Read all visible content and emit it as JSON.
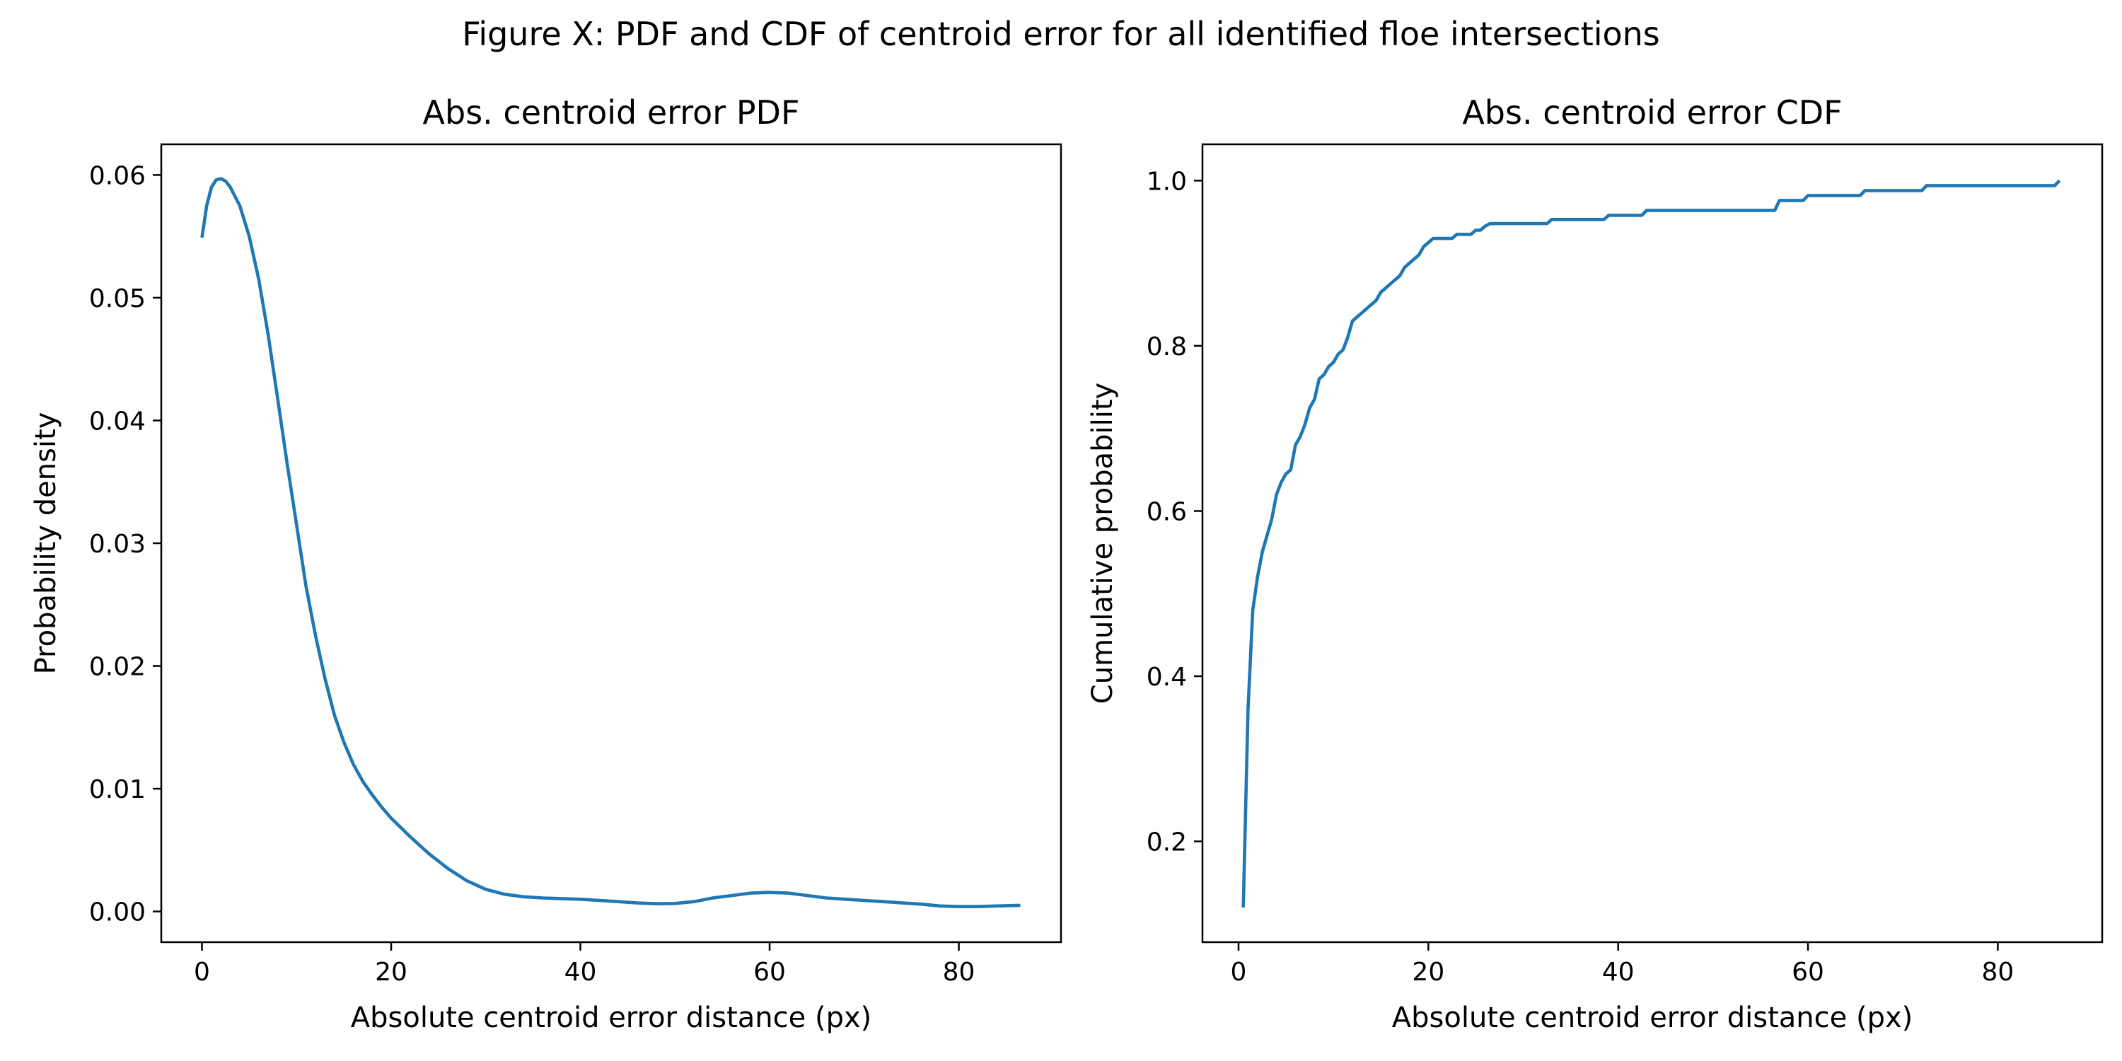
{
  "figure": {
    "suptitle": "Figure X: PDF and CDF of centroid error for all identified floe intersections"
  },
  "chart_data": [
    {
      "type": "line",
      "title": "Abs. centroid error PDF",
      "xlabel": "Absolute centroid error distance (px)",
      "ylabel": "Probability density",
      "xlim": [
        -4.3,
        90.8
      ],
      "ylim": [
        -0.0025,
        0.0625
      ],
      "xticks": [
        0,
        20,
        40,
        60,
        80
      ],
      "xtick_labels": [
        "0",
        "20",
        "40",
        "60",
        "80"
      ],
      "yticks": [
        0.0,
        0.01,
        0.02,
        0.03,
        0.04,
        0.05,
        0.06
      ],
      "ytick_labels": [
        "0.00",
        "0.01",
        "0.02",
        "0.03",
        "0.04",
        "0.05",
        "0.06"
      ],
      "grid": false,
      "color": "#1f77b4",
      "series": [
        {
          "x": [
            0,
            0.5,
            1,
            1.5,
            2,
            2.5,
            3,
            4,
            5,
            6,
            7,
            8,
            9,
            10,
            11,
            12,
            13,
            14,
            15,
            16,
            17,
            18,
            19,
            20,
            22,
            24,
            26,
            28,
            30,
            32,
            34,
            36,
            38,
            40,
            42,
            44,
            46,
            48,
            50,
            52,
            54,
            56,
            58,
            60,
            62,
            64,
            66,
            68,
            70,
            72,
            74,
            76,
            78,
            80,
            82,
            84,
            86.5
          ],
          "y": [
            0.0549,
            0.0575,
            0.059,
            0.0596,
            0.0597,
            0.0595,
            0.059,
            0.0575,
            0.055,
            0.0515,
            0.047,
            0.0418,
            0.0365,
            0.0315,
            0.0265,
            0.0225,
            0.019,
            0.016,
            0.0138,
            0.012,
            0.0106,
            0.0095,
            0.0085,
            0.0076,
            0.0061,
            0.0047,
            0.0035,
            0.0025,
            0.0018,
            0.0014,
            0.0012,
            0.0011,
            0.00105,
            0.001,
            0.0009,
            0.0008,
            0.0007,
            0.00063,
            0.00065,
            0.0008,
            0.0011,
            0.0013,
            0.0015,
            0.00155,
            0.0015,
            0.0013,
            0.0011,
            0.001,
            0.0009,
            0.0008,
            0.0007,
            0.0006,
            0.00045,
            0.0004,
            0.0004,
            0.00045,
            0.0005
          ]
        }
      ]
    },
    {
      "type": "line",
      "title": "Abs. centroid error CDF",
      "xlabel": "Absolute centroid error distance (px)",
      "ylabel": "Cumulative probability",
      "xlim": [
        -3.8,
        91.0
      ],
      "ylim": [
        0.078,
        1.044
      ],
      "xticks": [
        0,
        20,
        40,
        60,
        80
      ],
      "xtick_labels": [
        "0",
        "20",
        "40",
        "60",
        "80"
      ],
      "yticks": [
        0.2,
        0.4,
        0.6,
        0.8,
        1.0
      ],
      "ytick_labels": [
        "0.2",
        "0.4",
        "0.6",
        "0.8",
        "1.0"
      ],
      "grid": false,
      "color": "#1f77b4",
      "series": [
        {
          "x": [
            0.5,
            1.0,
            1.5,
            2.0,
            2.5,
            3.0,
            3.5,
            4.0,
            4.5,
            5.0,
            5.5,
            6.0,
            6.5,
            7.0,
            7.5,
            8.0,
            8.5,
            9.0,
            9.5,
            10.0,
            10.5,
            11.0,
            11.5,
            12.0,
            12.5,
            13.0,
            13.5,
            14.0,
            14.5,
            15.0,
            15.5,
            16.0,
            16.5,
            17.0,
            17.5,
            18.0,
            18.5,
            19.0,
            19.5,
            20.0,
            20.5,
            21.0,
            22.5,
            23.0,
            24.5,
            25.0,
            25.5,
            26.0,
            26.5,
            32.5,
            33.0,
            33.5,
            38.5,
            39.0,
            42.5,
            43.0,
            56.5,
            57.0,
            59.5,
            60.0,
            65.5,
            66.0,
            72.0,
            72.5,
            86.0,
            86.5
          ],
          "y": [
            0.12,
            0.36,
            0.48,
            0.52,
            0.55,
            0.57,
            0.59,
            0.62,
            0.635,
            0.645,
            0.65,
            0.68,
            0.69,
            0.705,
            0.725,
            0.735,
            0.76,
            0.765,
            0.775,
            0.78,
            0.79,
            0.795,
            0.81,
            0.83,
            0.835,
            0.84,
            0.845,
            0.85,
            0.855,
            0.865,
            0.87,
            0.875,
            0.88,
            0.885,
            0.895,
            0.9,
            0.905,
            0.91,
            0.92,
            0.925,
            0.93,
            0.93,
            0.93,
            0.935,
            0.935,
            0.94,
            0.94,
            0.945,
            0.948,
            0.948,
            0.953,
            0.953,
            0.953,
            0.958,
            0.958,
            0.964,
            0.964,
            0.976,
            0.976,
            0.982,
            0.982,
            0.988,
            0.988,
            0.994,
            0.994,
            1.0
          ]
        }
      ]
    }
  ]
}
